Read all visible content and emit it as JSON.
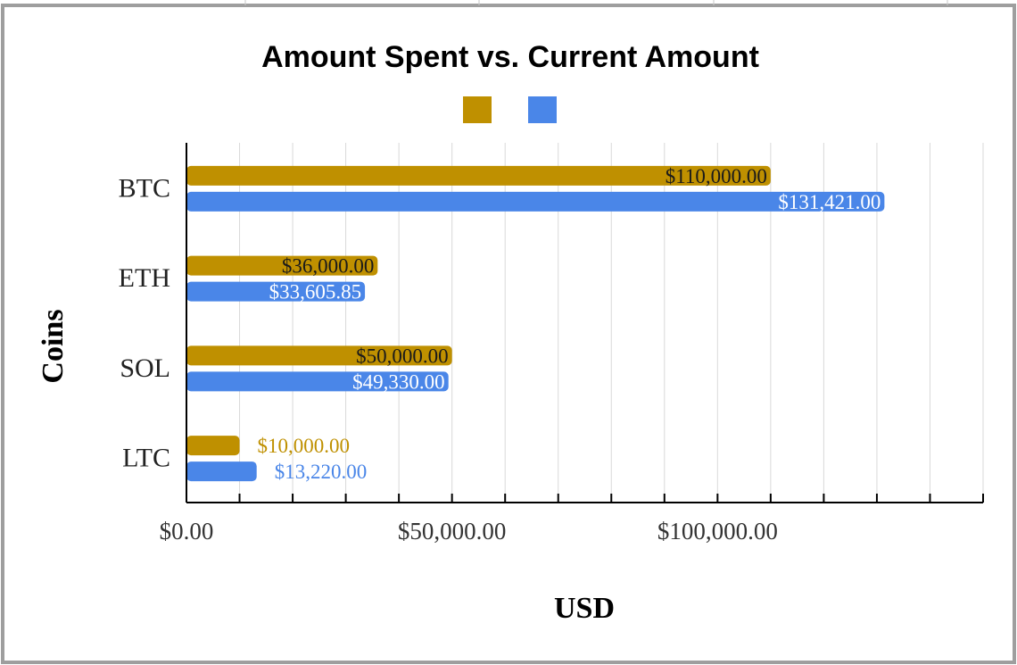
{
  "chart_data": {
    "type": "bar",
    "orientation": "horizontal",
    "title": "Amount Spent vs. Current Amount",
    "xlabel": "USD",
    "ylabel": "Coins",
    "categories": [
      "BTC",
      "ETH",
      "SOL",
      "LTC"
    ],
    "series": [
      {
        "color": "#bf9000",
        "values": [
          110000,
          36000,
          50000,
          10000
        ],
        "labels": [
          "$110,000.00",
          "$36,000.00",
          "$50,000.00",
          "$10,000.00"
        ]
      },
      {
        "color": "#4a86e8",
        "values": [
          131421,
          33605.85,
          49330,
          13220
        ],
        "labels": [
          "$131,421.00",
          "$33,605.85",
          "$49,330.00",
          "$13,220.00"
        ]
      }
    ],
    "xlim": [
      0,
      150000
    ],
    "xticks": [
      {
        "value": 0,
        "label": "$0.00"
      },
      {
        "value": 50000,
        "label": "$50,000.00"
      },
      {
        "value": 100000,
        "label": "$100,000.00"
      }
    ],
    "grid": true,
    "legend_position": "top-center"
  }
}
